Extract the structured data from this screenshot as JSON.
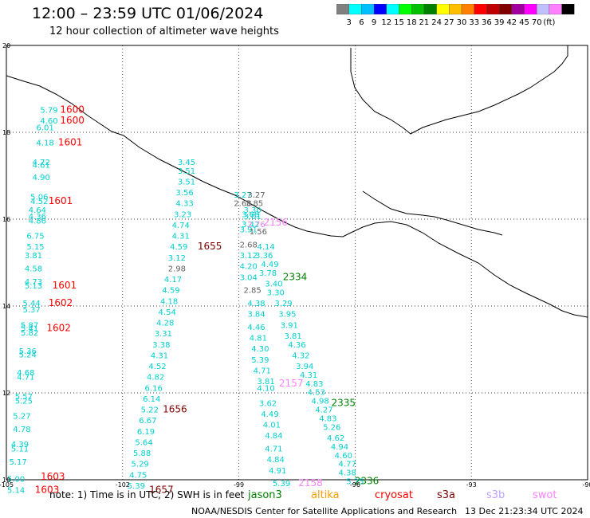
{
  "title": "12:00 – 23:59 UTC 01/06/2024",
  "subtitle": "12 hour collection of altimeter wave heights",
  "legend": {
    "colors": [
      "#808080",
      "#00ffff",
      "#00bfff",
      "#0000ff",
      "#00ffff",
      "#00ff00",
      "#00c000",
      "#008000",
      "#ffff00",
      "#ffbf00",
      "#ff8000",
      "#ff0000",
      "#c00000",
      "#800000",
      "#a000a0",
      "#ff00ff",
      "#c0c0ff",
      "#ff80ff",
      "#000000"
    ],
    "labels": [
      "3",
      "6",
      "9",
      "12",
      "15",
      "18",
      "21",
      "24",
      "27",
      "30",
      "33",
      "36",
      "39",
      "42",
      "45",
      "70",
      "(ft)"
    ]
  },
  "axes": {
    "lon_ticks": [
      "-105",
      "-102",
      "-99",
      "-96",
      "-93",
      "-90"
    ],
    "lat_ticks": [
      "20",
      "18",
      "16",
      "14",
      "12",
      "10"
    ]
  },
  "tracks": [
    {
      "color": "#00d0d0",
      "points": [
        {
          "lon": -103.9,
          "lat": 18.45,
          "v": "5.79"
        },
        {
          "lon": -103.9,
          "lat": 18.2,
          "v": "4.60"
        },
        {
          "lon": -104.0,
          "lat": 18.05,
          "v": "6.01"
        },
        {
          "lon": -104.0,
          "lat": 17.7,
          "v": "4.18"
        },
        {
          "lon": -104.1,
          "lat": 17.25,
          "v": "4.72"
        },
        {
          "lon": -104.1,
          "lat": 17.18,
          "v": "4.61"
        },
        {
          "lon": -104.1,
          "lat": 16.9,
          "v": "4.90"
        },
        {
          "lon": -104.15,
          "lat": 16.45,
          "v": "5.06"
        },
        {
          "lon": -104.15,
          "lat": 16.35,
          "v": "4.52"
        },
        {
          "lon": -104.2,
          "lat": 16.15,
          "v": "4.64"
        },
        {
          "lon": -104.2,
          "lat": 16.0,
          "v": "4.36"
        },
        {
          "lon": -104.2,
          "lat": 15.9,
          "v": "4.86"
        },
        {
          "lon": -104.25,
          "lat": 15.55,
          "v": "6.75"
        },
        {
          "lon": -104.25,
          "lat": 15.3,
          "v": "5.15"
        },
        {
          "lon": -104.3,
          "lat": 15.1,
          "v": "3.81"
        },
        {
          "lon": -104.3,
          "lat": 14.8,
          "v": "4.58"
        },
        {
          "lon": -104.3,
          "lat": 14.5,
          "v": "4.73"
        },
        {
          "lon": -104.3,
          "lat": 14.4,
          "v": "5.13"
        },
        {
          "lon": -104.35,
          "lat": 14.0,
          "v": "5.44"
        },
        {
          "lon": -104.35,
          "lat": 13.85,
          "v": "5.37"
        },
        {
          "lon": -104.4,
          "lat": 13.5,
          "v": "5.87"
        },
        {
          "lon": -104.4,
          "lat": 13.42,
          "v": "5.41"
        },
        {
          "lon": -104.4,
          "lat": 13.32,
          "v": "5.82"
        },
        {
          "lon": -104.45,
          "lat": 12.9,
          "v": "5.36"
        },
        {
          "lon": -104.45,
          "lat": 12.82,
          "v": "5.24"
        },
        {
          "lon": -104.5,
          "lat": 12.4,
          "v": "4.68"
        },
        {
          "lon": -104.5,
          "lat": 12.3,
          "v": "4.71"
        },
        {
          "lon": -104.55,
          "lat": 11.85,
          "v": "5.57"
        },
        {
          "lon": -104.55,
          "lat": 11.75,
          "v": "5.25"
        },
        {
          "lon": -104.6,
          "lat": 11.4,
          "v": "5.27"
        },
        {
          "lon": -104.6,
          "lat": 11.1,
          "v": "4.78"
        },
        {
          "lon": -104.65,
          "lat": 10.75,
          "v": "4.39"
        },
        {
          "lon": -104.65,
          "lat": 10.65,
          "v": "5.11"
        },
        {
          "lon": -104.7,
          "lat": 10.35,
          "v": "5.17"
        },
        {
          "lon": -104.75,
          "lat": 9.95,
          "v": "5.00"
        },
        {
          "lon": -104.75,
          "lat": 9.7,
          "v": "5.14"
        }
      ]
    },
    {
      "color": "#00d0d0",
      "points": [
        {
          "lon": -100.35,
          "lat": 17.25,
          "v": "3.45"
        },
        {
          "lon": -100.35,
          "lat": 17.05,
          "v": "3.51"
        },
        {
          "lon": -100.35,
          "lat": 16.8,
          "v": "3.51"
        },
        {
          "lon": -100.4,
          "lat": 16.55,
          "v": "3.56"
        },
        {
          "lon": -100.4,
          "lat": 16.3,
          "v": "4.33"
        },
        {
          "lon": -100.45,
          "lat": 16.05,
          "v": "3.23"
        },
        {
          "lon": -100.5,
          "lat": 15.8,
          "v": "4.74"
        },
        {
          "lon": -100.5,
          "lat": 15.55,
          "v": "4.31"
        },
        {
          "lon": -100.55,
          "lat": 15.3,
          "v": "4.59"
        },
        {
          "lon": -100.6,
          "lat": 15.05,
          "v": "3.12"
        },
        {
          "lon": -100.7,
          "lat": 14.55,
          "v": "4.17"
        },
        {
          "lon": -100.75,
          "lat": 14.3,
          "v": "4.59"
        },
        {
          "lon": -100.8,
          "lat": 14.05,
          "v": "4.18"
        },
        {
          "lon": -100.85,
          "lat": 13.8,
          "v": "4.54"
        },
        {
          "lon": -100.9,
          "lat": 13.55,
          "v": "4.28"
        },
        {
          "lon": -100.95,
          "lat": 13.3,
          "v": "3.31"
        },
        {
          "lon": -101.0,
          "lat": 13.05,
          "v": "3.38"
        },
        {
          "lon": -101.05,
          "lat": 12.8,
          "v": "4.31"
        },
        {
          "lon": -101.1,
          "lat": 12.55,
          "v": "4.52"
        },
        {
          "lon": -101.15,
          "lat": 12.3,
          "v": "4.82"
        },
        {
          "lon": -101.2,
          "lat": 12.05,
          "v": "6.16"
        },
        {
          "lon": -101.25,
          "lat": 11.8,
          "v": "6.14"
        },
        {
          "lon": -101.3,
          "lat": 11.55,
          "v": "5.22"
        },
        {
          "lon": -101.35,
          "lat": 11.3,
          "v": "6.67"
        },
        {
          "lon": -101.4,
          "lat": 11.05,
          "v": "6.19"
        },
        {
          "lon": -101.45,
          "lat": 10.8,
          "v": "5.64"
        },
        {
          "lon": -101.5,
          "lat": 10.55,
          "v": "5.88"
        },
        {
          "lon": -101.55,
          "lat": 10.3,
          "v": "5.29"
        },
        {
          "lon": -101.6,
          "lat": 10.05,
          "v": "4.75"
        },
        {
          "lon": -101.65,
          "lat": 9.8,
          "v": "5.39"
        }
      ]
    },
    {
      "color": "#00d0d0",
      "points": [
        {
          "lon": -98.9,
          "lat": 16.5,
          "v": "3.27"
        },
        {
          "lon": -98.65,
          "lat": 16.15,
          "v": "3.30"
        },
        {
          "lon": -98.7,
          "lat": 16.05,
          "v": "3.68"
        },
        {
          "lon": -98.65,
          "lat": 16.0,
          "v": "3.01"
        },
        {
          "lon": -98.7,
          "lat": 15.82,
          "v": "3.42"
        },
        {
          "lon": -98.75,
          "lat": 15.7,
          "v": "3.91"
        },
        {
          "lon": -98.3,
          "lat": 15.3,
          "v": "4.14"
        },
        {
          "lon": -98.75,
          "lat": 15.1,
          "v": "3.12"
        },
        {
          "lon": -98.35,
          "lat": 15.1,
          "v": "3.36"
        },
        {
          "lon": -98.2,
          "lat": 14.9,
          "v": "4.49"
        },
        {
          "lon": -98.75,
          "lat": 14.85,
          "v": "4.20"
        },
        {
          "lon": -98.25,
          "lat": 14.7,
          "v": "3.78"
        },
        {
          "lon": -98.75,
          "lat": 14.6,
          "v": "3.04"
        },
        {
          "lon": -98.1,
          "lat": 14.45,
          "v": "3.40"
        },
        {
          "lon": -98.05,
          "lat": 14.25,
          "v": "3.30"
        },
        {
          "lon": -98.55,
          "lat": 14.0,
          "v": "4.38"
        },
        {
          "lon": -97.85,
          "lat": 14.0,
          "v": "3.29"
        },
        {
          "lon": -97.75,
          "lat": 13.75,
          "v": "3.95"
        },
        {
          "lon": -98.55,
          "lat": 13.75,
          "v": "3.84"
        },
        {
          "lon": -97.7,
          "lat": 13.5,
          "v": "3.91"
        },
        {
          "lon": -98.55,
          "lat": 13.45,
          "v": "4.46"
        },
        {
          "lon": -97.6,
          "lat": 13.25,
          "v": "3.81"
        },
        {
          "lon": -98.5,
          "lat": 13.2,
          "v": "4.81"
        },
        {
          "lon": -97.5,
          "lat": 13.05,
          "v": "4.36"
        },
        {
          "lon": -98.45,
          "lat": 12.95,
          "v": "4.30"
        },
        {
          "lon": -97.4,
          "lat": 12.8,
          "v": "4.32"
        },
        {
          "lon": -98.45,
          "lat": 12.7,
          "v": "5.39"
        },
        {
          "lon": -97.3,
          "lat": 12.55,
          "v": "3.94"
        },
        {
          "lon": -98.4,
          "lat": 12.45,
          "v": "4.71"
        },
        {
          "lon": -97.2,
          "lat": 12.35,
          "v": "4.31"
        },
        {
          "lon": -98.3,
          "lat": 12.2,
          "v": "3.81"
        },
        {
          "lon": -97.05,
          "lat": 12.15,
          "v": "4.83"
        },
        {
          "lon": -98.3,
          "lat": 12.05,
          "v": "4.10"
        },
        {
          "lon": -97.0,
          "lat": 11.95,
          "v": "4.53"
        },
        {
          "lon": -96.9,
          "lat": 11.75,
          "v": "4.98"
        },
        {
          "lon": -98.25,
          "lat": 11.7,
          "v": "3.62"
        },
        {
          "lon": -96.8,
          "lat": 11.55,
          "v": "4.27"
        },
        {
          "lon": -98.2,
          "lat": 11.45,
          "v": "4.49"
        },
        {
          "lon": -96.7,
          "lat": 11.35,
          "v": "4.83"
        },
        {
          "lon": -98.15,
          "lat": 11.2,
          "v": "4.01"
        },
        {
          "lon": -96.6,
          "lat": 11.15,
          "v": "5.26"
        },
        {
          "lon": -96.5,
          "lat": 10.9,
          "v": "4.62"
        },
        {
          "lon": -98.1,
          "lat": 10.95,
          "v": "4.84"
        },
        {
          "lon": -96.4,
          "lat": 10.7,
          "v": "4.94"
        },
        {
          "lon": -98.1,
          "lat": 10.65,
          "v": "4.71"
        },
        {
          "lon": -96.3,
          "lat": 10.5,
          "v": "4.60"
        },
        {
          "lon": -98.05,
          "lat": 10.4,
          "v": "4.84"
        },
        {
          "lon": -96.2,
          "lat": 10.3,
          "v": "4.77"
        },
        {
          "lon": -98.0,
          "lat": 10.15,
          "v": "4.91"
        },
        {
          "lon": -96.2,
          "lat": 10.1,
          "v": "4.38"
        },
        {
          "lon": -97.9,
          "lat": 9.85,
          "v": "5.39"
        },
        {
          "lon": -96.0,
          "lat": 9.9,
          "v": "5.25"
        }
      ]
    },
    {
      "color": "#606060",
      "points": [
        {
          "lon": -98.55,
          "lat": 16.5,
          "v": "3.27"
        },
        {
          "lon": -98.9,
          "lat": 16.3,
          "v": "2.68"
        },
        {
          "lon": -98.6,
          "lat": 16.3,
          "v": "3.85"
        },
        {
          "lon": -98.5,
          "lat": 15.65,
          "v": "1.56"
        },
        {
          "lon": -98.75,
          "lat": 15.35,
          "v": "2.68"
        },
        {
          "lon": -98.65,
          "lat": 14.3,
          "v": "2.85"
        },
        {
          "lon": -100.6,
          "lat": 14.8,
          "v": "2.98"
        }
      ]
    },
    {
      "color": "#e080e0",
      "points": [
        {
          "lon": -98.55,
          "lat": 15.82,
          "v": "2.76"
        }
      ]
    }
  ],
  "passes": [
    {
      "lon": -103.3,
      "lat": 18.45,
      "v": "1600",
      "color": "#ff0000"
    },
    {
      "lon": -103.3,
      "lat": 18.2,
      "v": "1600",
      "color": "#ff0000"
    },
    {
      "lon": -103.35,
      "lat": 17.7,
      "v": "1601",
      "color": "#ff0000"
    },
    {
      "lon": -103.6,
      "lat": 16.35,
      "v": "1601",
      "color": "#ff0000"
    },
    {
      "lon": -103.5,
      "lat": 14.4,
      "v": "1601",
      "color": "#ff0000"
    },
    {
      "lon": -103.6,
      "lat": 14.0,
      "v": "1602",
      "color": "#ff0000"
    },
    {
      "lon": -103.65,
      "lat": 13.42,
      "v": "1602",
      "color": "#ff0000"
    },
    {
      "lon": -103.8,
      "lat": 10.0,
      "v": "1603",
      "color": "#ff0000"
    },
    {
      "lon": -103.95,
      "lat": 9.7,
      "v": "1603",
      "color": "#ff0000"
    },
    {
      "lon": -99.75,
      "lat": 15.3,
      "v": "1655",
      "color": "#800000"
    },
    {
      "lon": -100.65,
      "lat": 11.55,
      "v": "1656",
      "color": "#800000"
    },
    {
      "lon": -101.0,
      "lat": 9.7,
      "v": "1657",
      "color": "#800000"
    },
    {
      "lon": -98.05,
      "lat": 15.85,
      "v": "2156",
      "color": "#ff80ff"
    },
    {
      "lon": -97.65,
      "lat": 12.15,
      "v": "2157",
      "color": "#ff80ff"
    },
    {
      "lon": -97.15,
      "lat": 9.85,
      "v": "2158",
      "color": "#ff80ff"
    },
    {
      "lon": -97.55,
      "lat": 14.6,
      "v": "2334",
      "color": "#008000"
    },
    {
      "lon": -96.3,
      "lat": 11.7,
      "v": "2335",
      "color": "#008000"
    },
    {
      "lon": -95.7,
      "lat": 9.9,
      "v": "2336",
      "color": "#008000"
    }
  ],
  "note": {
    "prefix": "note:  1) Time is in UTC; 2) SWH is in feet",
    "missions": [
      {
        "name": "jason3",
        "color": "#008000"
      },
      {
        "name": "altika",
        "color": "#ff9900"
      },
      {
        "name": "cryosat",
        "color": "#ff0000"
      },
      {
        "name": "s3a",
        "color": "#800000"
      },
      {
        "name": "s3b",
        "color": "#c0a0ff"
      },
      {
        "name": "swot",
        "color": "#ff80ff"
      }
    ]
  },
  "credit": "NOAA/NESDIS Center for Satellite Applications and Research",
  "credit_date": "13 Dec 21:23:34 UTC 2024"
}
